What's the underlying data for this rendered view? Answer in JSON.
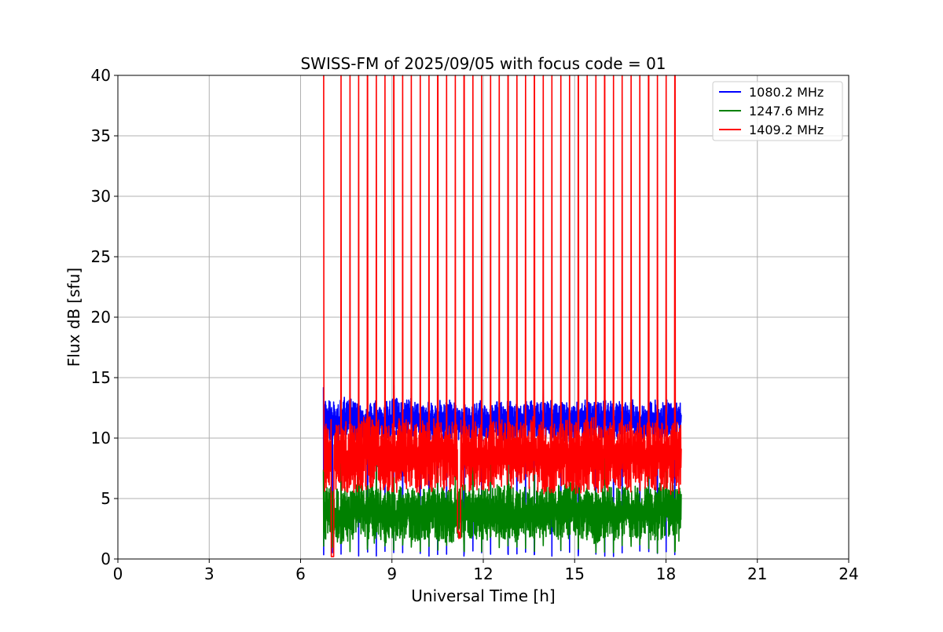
{
  "chart_data": {
    "type": "line",
    "title": "SWISS-FM of 2025/09/05 with focus code = 01",
    "xlabel": "Universal Time [h]",
    "ylabel": "Flux dB [sfu]",
    "xlim": [
      0,
      24
    ],
    "ylim": [
      0,
      40
    ],
    "x_ticks": [
      0,
      3,
      6,
      9,
      12,
      15,
      18,
      21,
      24
    ],
    "x_tick_labels": [
      "0",
      "3",
      "6",
      "9",
      "12",
      "15",
      "18",
      "21",
      "24"
    ],
    "y_ticks": [
      0,
      5,
      10,
      15,
      20,
      25,
      30,
      35,
      40
    ],
    "y_tick_labels": [
      "0",
      "5",
      "10",
      "15",
      "20",
      "25",
      "30",
      "35",
      "40"
    ],
    "grid": true,
    "legend_position": "top-right",
    "data_time_range_h": [
      6.75,
      18.5
    ],
    "series": [
      {
        "name": "1080.2 MHz",
        "color": "#0000ff",
        "baseline": 11.5,
        "band_low": 10.3,
        "band_high": 13.5,
        "spike_max": 15.7,
        "spike_min": 0.2
      },
      {
        "name": "1247.6 MHz",
        "color": "#008000",
        "baseline": 3.8,
        "band_low": 1.5,
        "band_high": 6.0,
        "spike_max": 9.5,
        "spike_min": 0.5
      },
      {
        "name": "1409.2 MHz",
        "color": "#ff0000",
        "baseline": 8.5,
        "band_low": 5.5,
        "band_high": 11.5,
        "spike_max": 40,
        "spike_min": 0
      }
    ]
  }
}
